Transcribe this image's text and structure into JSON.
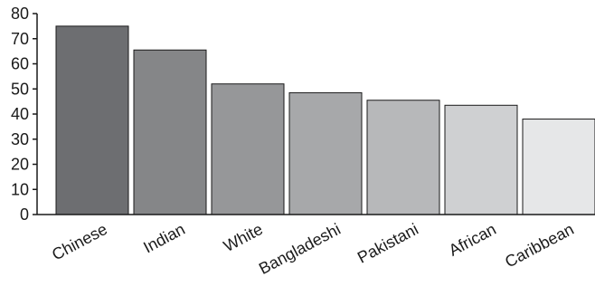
{
  "chart_data": {
    "type": "bar",
    "categories": [
      "Chinese",
      "Indian",
      "White",
      "Bangladeshi",
      "Pakistani",
      "African",
      "Caribbean"
    ],
    "values": [
      75,
      65.5,
      52,
      48.5,
      45.5,
      43.5,
      38
    ],
    "ylim": [
      0,
      80
    ],
    "yticks": [
      "0",
      "10",
      "20",
      "30",
      "40",
      "50",
      "60",
      "70",
      "80"
    ],
    "grid": false,
    "bar_colors": [
      "#6d6e71",
      "#858688",
      "#969799",
      "#a7a8aa",
      "#b7b8ba",
      "#cfd0d2",
      "#e6e7e8"
    ],
    "title": "",
    "xlabel": "",
    "ylabel": ""
  }
}
